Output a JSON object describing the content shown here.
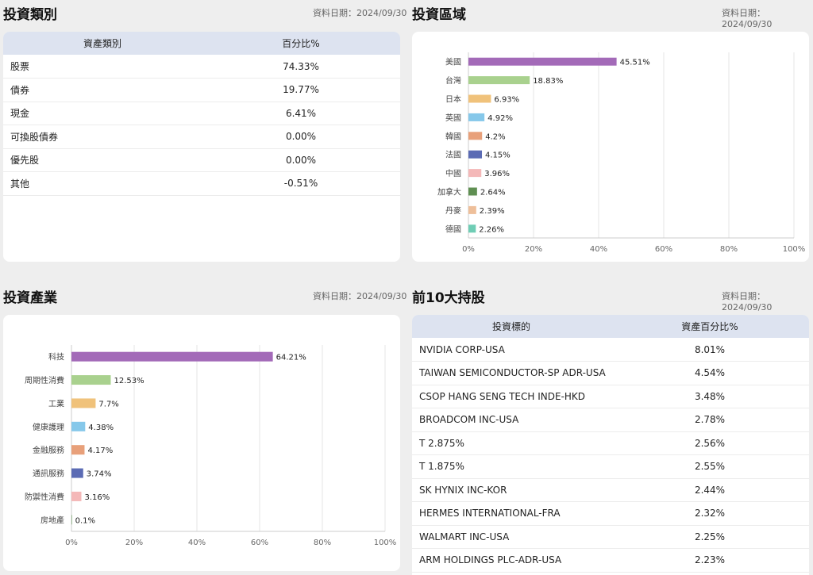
{
  "asset_class": {
    "title": "投資類別",
    "date": "資料日期：2024/09/30",
    "headers": [
      "資產類別",
      "百分比%"
    ],
    "rows": [
      [
        "股票",
        "74.33%"
      ],
      [
        "債券",
        "19.77%"
      ],
      [
        "現金",
        "6.41%"
      ],
      [
        "可換股債券",
        "0.00%"
      ],
      [
        "優先股",
        "0.00%"
      ],
      [
        "其他",
        "-0.51%"
      ]
    ]
  },
  "region": {
    "title": "投資區域",
    "date": "資料日期：2024/09/30"
  },
  "industry": {
    "title": "投資產業",
    "date": "資料日期：2024/09/30"
  },
  "top10": {
    "title": "前10大持股",
    "date": "資料日期：2024/09/30",
    "headers": [
      "投資標的",
      "資產百分比%"
    ],
    "rows": [
      [
        "NVIDIA CORP-USA",
        "8.01%"
      ],
      [
        "TAIWAN SEMICONDUCTOR-SP ADR-USA",
        "4.54%"
      ],
      [
        "CSOP HANG SENG TECH INDE-HKD",
        "3.48%"
      ],
      [
        "BROADCOM INC-USA",
        "2.78%"
      ],
      [
        "T 2.875%",
        "2.56%"
      ],
      [
        "T 1.875%",
        "2.55%"
      ],
      [
        "SK HYNIX INC-KOR",
        "2.44%"
      ],
      [
        "HERMES INTERNATIONAL-FRA",
        "2.32%"
      ],
      [
        "WALMART INC-USA",
        "2.25%"
      ],
      [
        "ARM HOLDINGS PLC-ADR-USA",
        "2.23%"
      ]
    ]
  },
  "chart_data": [
    {
      "type": "bar",
      "orientation": "horizontal",
      "title": "投資區域",
      "categories": [
        "美國",
        "台灣",
        "日本",
        "英國",
        "韓國",
        "法國",
        "中國",
        "加拿大",
        "丹麥",
        "德國"
      ],
      "values": [
        45.51,
        18.83,
        6.93,
        4.92,
        4.2,
        4.15,
        3.96,
        2.64,
        2.39,
        2.26
      ],
      "labels": [
        "45.51%",
        "18.83%",
        "6.93%",
        "4.92%",
        "4.2%",
        "4.15%",
        "3.96%",
        "2.64%",
        "2.39%",
        "2.26%"
      ],
      "colors": [
        "#a36ab8",
        "#a9d18e",
        "#f0c27b",
        "#86c8ea",
        "#e8a07a",
        "#5b6bb4",
        "#f4b8b8",
        "#5f8f52",
        "#eebf9a",
        "#6fcdb5"
      ],
      "xlim": [
        0,
        100
      ],
      "xticks": [
        "0%",
        "20%",
        "40%",
        "60%",
        "80%",
        "100%"
      ],
      "grid": true
    },
    {
      "type": "bar",
      "orientation": "horizontal",
      "title": "投資產業",
      "categories": [
        "科技",
        "周期性消費",
        "工業",
        "健康護理",
        "金融服務",
        "通訊服務",
        "防禦性消費",
        "房地產"
      ],
      "values": [
        64.21,
        12.53,
        7.7,
        4.38,
        4.17,
        3.74,
        3.16,
        0.1
      ],
      "labels": [
        "64.21%",
        "12.53%",
        "7.7%",
        "4.38%",
        "4.17%",
        "3.74%",
        "3.16%",
        "0.1%"
      ],
      "colors": [
        "#a36ab8",
        "#a9d18e",
        "#f0c27b",
        "#86c8ea",
        "#e8a07a",
        "#5b6bb4",
        "#f4b8b8",
        "#5f8f52"
      ],
      "xlim": [
        0,
        100
      ],
      "xticks": [
        "0%",
        "20%",
        "40%",
        "60%",
        "80%",
        "100%"
      ],
      "grid": true
    }
  ]
}
